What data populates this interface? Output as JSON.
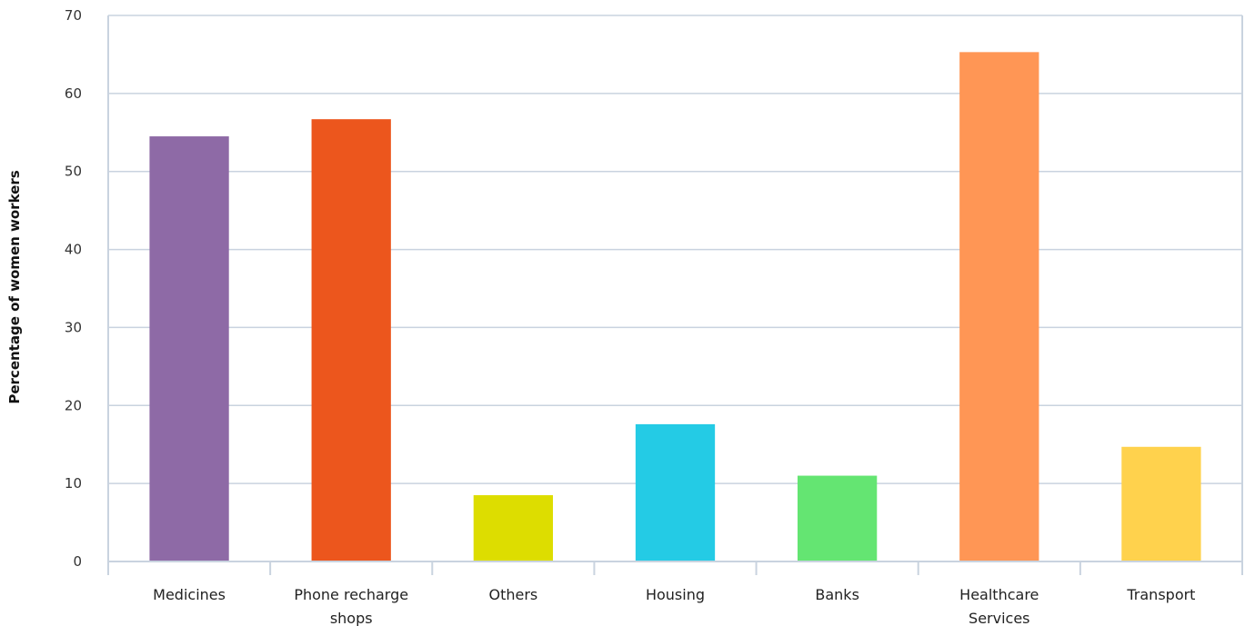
{
  "chart_data": {
    "type": "bar",
    "title": "",
    "xlabel": "",
    "ylabel": "Percentage of women workers",
    "ylim": [
      0,
      70
    ],
    "yticks": [
      0,
      10,
      20,
      30,
      40,
      50,
      60,
      70
    ],
    "grid": true,
    "categories": [
      [
        "Medicines"
      ],
      [
        "Phone recharge",
        "shops"
      ],
      [
        "Others"
      ],
      [
        "Housing"
      ],
      [
        "Banks"
      ],
      [
        "Healthcare",
        "Services"
      ],
      [
        "Transport"
      ]
    ],
    "values": [
      54.5,
      56.7,
      8.5,
      17.6,
      11.0,
      65.3,
      14.7
    ],
    "colors": [
      "#8e6aa6",
      "#ec561d",
      "#dddd00",
      "#24cbe5",
      "#64e572",
      "#ff9655",
      "#ffd24d"
    ]
  }
}
